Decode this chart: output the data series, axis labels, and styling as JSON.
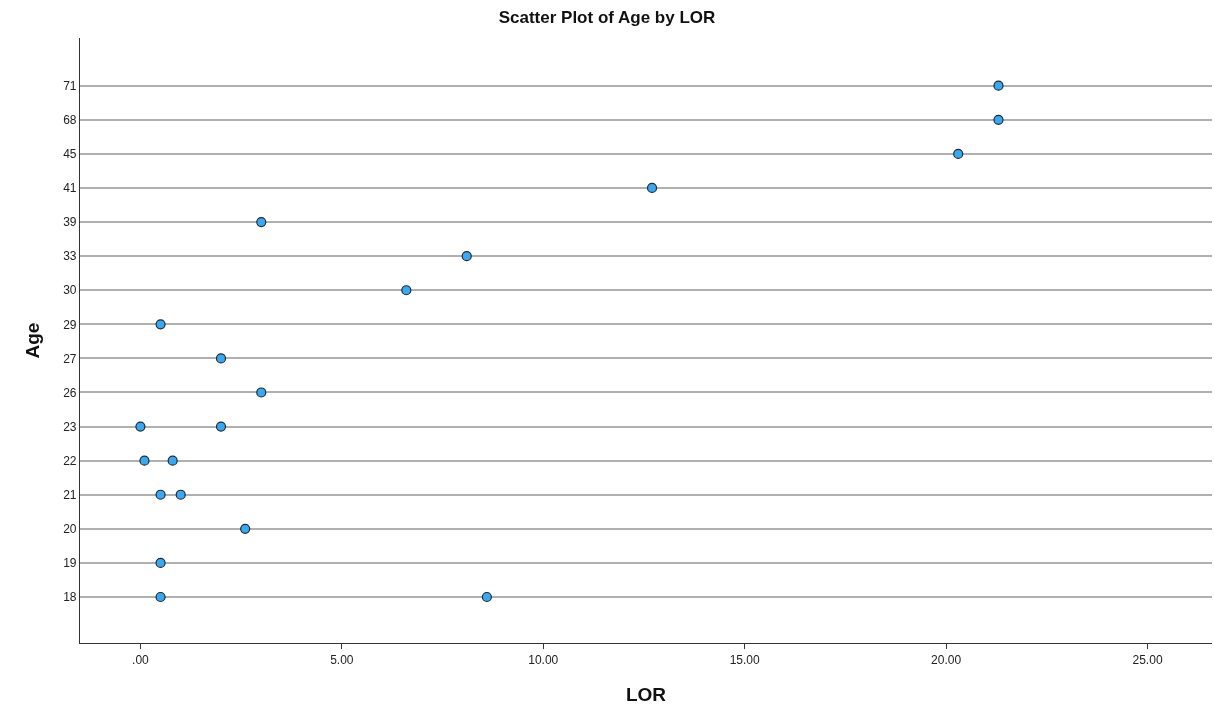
{
  "chart_data": {
    "type": "scatter",
    "orientation": "horizontal",
    "title": "Scatter Plot of Age by LOR",
    "xlabel": "LOR",
    "ylabel": "Age",
    "categories": [
      "71",
      "68",
      "45",
      "41",
      "39",
      "33",
      "30",
      "29",
      "27",
      "26",
      "23",
      "22",
      "21",
      "20",
      "19",
      "18"
    ],
    "series": [
      {
        "color": "#3aa8f0",
        "values": [
          21.3,
          21.3,
          20.3,
          12.7,
          3.0,
          8.1,
          6.6,
          0.5,
          2.0,
          3.0,
          0.0,
          0.1,
          0.5,
          2.6,
          0.5,
          0.5
        ]
      },
      {
        "color": "#3aa8f0",
        "values": [
          null,
          null,
          null,
          null,
          null,
          null,
          null,
          null,
          null,
          null,
          2.0,
          0.8,
          1.0,
          null,
          null,
          8.6
        ]
      }
    ],
    "xlim": [
      -1.5,
      26.6
    ],
    "xticks": [
      {
        "value": 0,
        "label": ".00"
      },
      {
        "value": 5,
        "label": "5.00"
      },
      {
        "value": 10,
        "label": "10.00"
      },
      {
        "value": 15,
        "label": "15.00"
      },
      {
        "value": 20,
        "label": "20.00"
      },
      {
        "value": 25,
        "label": "25.00"
      }
    ],
    "grid": "y",
    "marker": "circle"
  }
}
